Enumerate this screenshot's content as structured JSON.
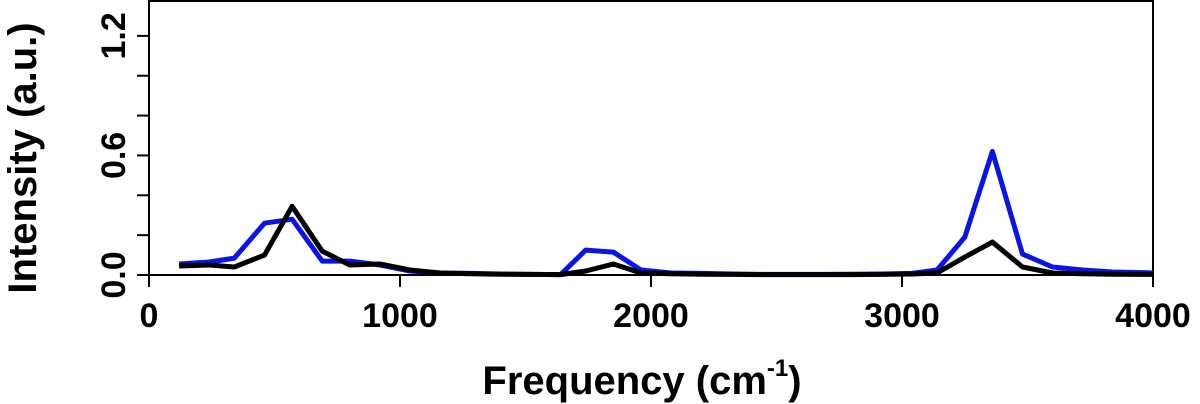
{
  "chart_data": {
    "type": "line",
    "xlabel": "Frequency (cm",
    "xlabel_sup": "-1",
    "xlabel_close": ")",
    "ylabel": "Intensity (a.u.)",
    "xlim": [
      0,
      4000
    ],
    "ylim": [
      0,
      1.38
    ],
    "x_ticks": [
      0,
      1000,
      2000,
      3000,
      4000
    ],
    "x_tick_labels": [
      "0",
      "1000",
      "2000",
      "3000",
      "4000"
    ],
    "y_ticks": [
      0,
      0.2,
      0.4,
      0.6,
      0.8,
      1.0,
      1.2
    ],
    "y_tick_labels": [
      "0.0",
      "",
      "",
      "0.6",
      "",
      "",
      "1.2"
    ],
    "grid": false,
    "series": [
      {
        "color": "#0a14e6",
        "x": [
          120,
          240,
          340,
          460,
          570,
          690,
          800,
          920,
          1040,
          1160,
          1280,
          1400,
          1520,
          1640,
          1740,
          1850,
          1960,
          2080,
          2200,
          2320,
          2440,
          2560,
          2680,
          2800,
          2920,
          3040,
          3140,
          3250,
          3360,
          3480,
          3600,
          3720,
          3840,
          3960,
          4000
        ],
        "y": [
          0.055,
          0.065,
          0.085,
          0.26,
          0.28,
          0.07,
          0.07,
          0.05,
          0.02,
          0.01,
          0.008,
          0.005,
          0.003,
          0.002,
          0.125,
          0.115,
          0.025,
          0.01,
          0.008,
          0.005,
          0.003,
          0.003,
          0.003,
          0.004,
          0.005,
          0.008,
          0.025,
          0.19,
          0.62,
          0.105,
          0.04,
          0.025,
          0.015,
          0.012,
          0.01
        ]
      },
      {
        "color": "#000000",
        "x": [
          120,
          240,
          340,
          460,
          570,
          690,
          800,
          920,
          1040,
          1160,
          1280,
          1400,
          1520,
          1640,
          1740,
          1850,
          1960,
          2080,
          2200,
          2320,
          2440,
          2560,
          2680,
          2800,
          2920,
          3040,
          3140,
          3250,
          3360,
          3480,
          3600,
          3720,
          3840,
          3960,
          4000
        ],
        "y": [
          0.045,
          0.05,
          0.04,
          0.1,
          0.345,
          0.12,
          0.05,
          0.055,
          0.025,
          0.01,
          0.006,
          0.004,
          0.003,
          0.002,
          0.02,
          0.055,
          0.01,
          0.006,
          0.004,
          0.003,
          0.002,
          0.002,
          0.002,
          0.002,
          0.003,
          0.005,
          0.01,
          0.09,
          0.165,
          0.04,
          0.01,
          0.006,
          0.004,
          0.003,
          0.003
        ]
      }
    ]
  }
}
